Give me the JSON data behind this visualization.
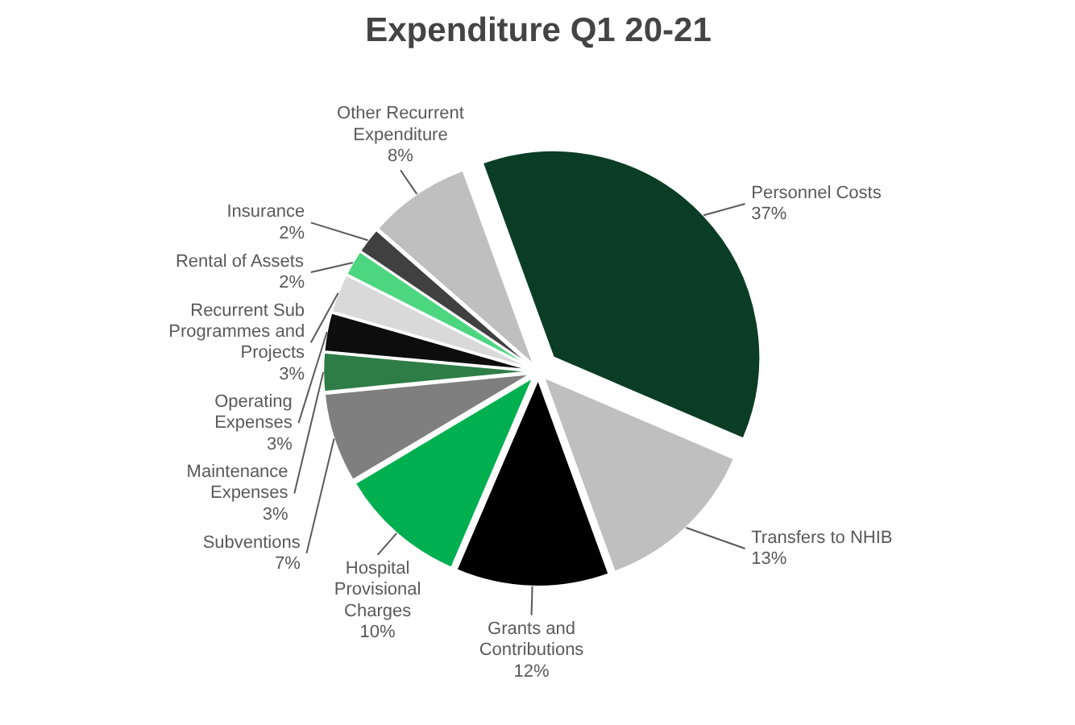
{
  "chart_data": {
    "type": "pie",
    "title": "Expenditure Q1 20-21",
    "categories": [
      "Personnel Costs",
      "Transfers to NHIB",
      "Grants and Contributions",
      "Hospital Provisional Charges",
      "Subventions",
      "Maintenance Expenses",
      "Operating Expenses",
      "Recurrent Sub Programmes and Projects",
      "Rental of Assets",
      "Insurance",
      "Other Recurrent Expenditure"
    ],
    "values": [
      37,
      13,
      12,
      10,
      7,
      3,
      3,
      3,
      2,
      2,
      8
    ],
    "value_labels": [
      "37%",
      "13%",
      "12%",
      "10%",
      "7%",
      "3%",
      "3%",
      "3%",
      "2%",
      "2%",
      "8%"
    ],
    "colors": [
      "#0b3d26",
      "#bfbfbf",
      "#000000",
      "#00b050",
      "#7f7f7f",
      "#2e7d46",
      "#0d0d0d",
      "#d9d9d9",
      "#4cd680",
      "#404040",
      "#bfbfbf"
    ]
  }
}
